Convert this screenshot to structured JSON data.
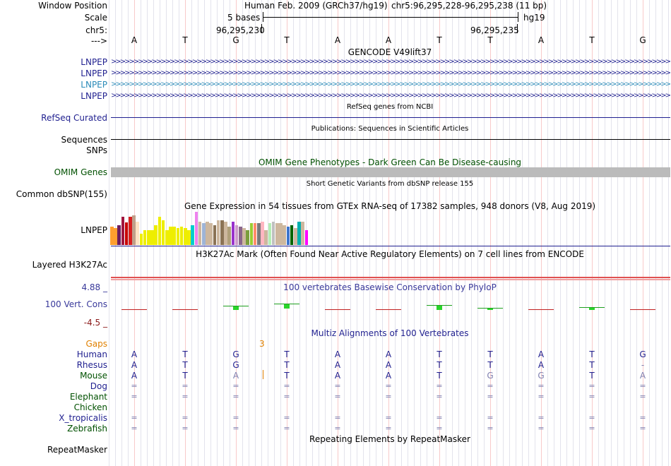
{
  "labels": {
    "window_position": "Window Position",
    "scale": "Scale",
    "chr": "chr5:",
    "strand": "--->",
    "lnpep": "LNPEP",
    "refseq": "RefSeq Curated",
    "sequences": "Sequences",
    "snps": "SNPs",
    "omim": "OMIM Genes",
    "common_dbsnp": "Common dbSNP(155)",
    "gtex": "LNPEP",
    "h3k27ac": "Layered H3K27Ac",
    "cons_max": "4.88 _",
    "cons": "100 Vert. Cons",
    "cons_min": "-4.5 _",
    "gaps": "Gaps",
    "species": [
      "Human",
      "Rhesus",
      "Mouse",
      "Dog",
      "Elephant",
      "Chicken",
      "X_tropicalis",
      "Zebrafish"
    ],
    "repeatmasker": "RepeatMasker"
  },
  "header": {
    "assembly": "Human Feb. 2009 (GRCh37/hg19)",
    "position": "chr5:96,295,228-96,295,238 (11 bp)",
    "scale_text": "5 bases",
    "scale_db": "hg19",
    "coord_left": "96,295,230",
    "coord_right": "96,295,235"
  },
  "sequence": [
    "A",
    "T",
    "G",
    "T",
    "A",
    "A",
    "T",
    "T",
    "A",
    "T",
    "G"
  ],
  "tracks": {
    "gencode_title": "GENCODE V49lift37",
    "refseq_title": "RefSeq genes from NCBI",
    "publications_title": "Publications: Sequences in Scientific Articles",
    "omim_title": "OMIM Gene Phenotypes - Dark Green Can Be Disease-causing",
    "dbsnp_title": "Short Genetic Variants from dbSNP release 155",
    "gtex_title": "Gene Expression in 54 tissues from GTEx RNA-seq of 17382 samples, 948 donors (V8, Aug 2019)",
    "h3k27ac_title": "H3K27Ac Mark (Often Found Near Active Regulatory Elements) on 7 cell lines from ENCODE",
    "phylop_title": "100 vertebrates Basewise Conservation by PhyloP",
    "multiz_title": "Multiz Alignments of 100 Vertebrates",
    "repeat_title": "Repeating Elements by RepeatMasker"
  },
  "alignment": {
    "gap_count": "3",
    "rhesus": [
      "A",
      "T",
      "G",
      "T",
      "A",
      "A",
      "T",
      "T",
      "A",
      "T",
      "-"
    ],
    "mouse": [
      "A",
      "T",
      "A",
      "T",
      "A",
      "A",
      "T",
      "G",
      "G",
      "T",
      "A"
    ],
    "mouse_mismatch": [
      false,
      false,
      true,
      false,
      false,
      false,
      false,
      true,
      true,
      false,
      true
    ],
    "eq": "="
  },
  "gtex_values": [
    0.55,
    0.5,
    0.6,
    0.85,
    0.68,
    0.85,
    0.9,
    0.7,
    0.35,
    0.45,
    0.45,
    0.45,
    0.6,
    0.85,
    0.75,
    0.45,
    0.55,
    0.55,
    0.5,
    0.55,
    0.5,
    0.45,
    0.6,
    1.0,
    0.7,
    0.65,
    0.7,
    0.65,
    0.6,
    0.75,
    0.75,
    0.7,
    0.55,
    0.7,
    0.6,
    0.55,
    0.5,
    0.45,
    0.65,
    0.65,
    0.65,
    0.7,
    0.45,
    0.65,
    0.7,
    0.65,
    0.65,
    0.6,
    0.55,
    0.6,
    0.5,
    0.7,
    0.7,
    0.45
  ],
  "gtex_colors": [
    "#FF9F2E",
    "#FF9F2E",
    "#6E1E5E",
    "#A0153E",
    "#C80000",
    "#D82020",
    "#C0A08A",
    "#FFE4C4",
    "#EEEE00",
    "#EEEE00",
    "#EEEE00",
    "#EEEE00",
    "#EEEE00",
    "#EEEE00",
    "#EEEE00",
    "#EEEE00",
    "#EEEE00",
    "#EEEE00",
    "#EEEE00",
    "#EEEE00",
    "#EEEE00",
    "#EEEE00",
    "#00CDCD",
    "#EE82EE",
    "#CDB79E",
    "#9EB4D6",
    "#CDB79E",
    "#CDB79E",
    "#8B7355",
    "#CDB79E",
    "#8B7355",
    "#CDB79E",
    "#B0A07A",
    "#9932CC",
    "#CD9BCB",
    "#8B668B",
    "#CDB79E",
    "#7A9E3C",
    "#9ACD32",
    "#FF8C69",
    "#7A7A7A",
    "#FFB6C1",
    "#CDB79E",
    "#B4EEB4",
    "#C0C0C0",
    "#CDB79E",
    "#CDB79E",
    "#CDB79E",
    "#3D75CD",
    "#006400",
    "#CDB79E",
    "#00B0B0",
    "#CDB79E",
    "#FF00FF"
  ],
  "phylop_values": [
    -0.1,
    -0.2,
    0.3,
    0.5,
    -0.3,
    -0.3,
    0.4,
    0.15,
    -0.05,
    0.2,
    -0.15
  ],
  "colors": {
    "blue": "#1f1f8f",
    "omim_green": "#005000",
    "omim_bar": "#bbbbbb",
    "orange": "#e08000",
    "cons_blue": "#38389a",
    "cons_red": "#8b1a1a"
  }
}
